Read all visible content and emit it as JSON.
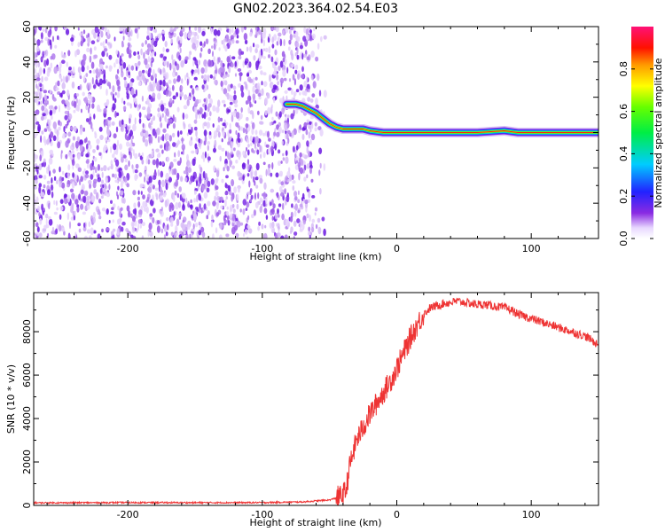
{
  "title": "GN02.2023.364.02.54.E03",
  "chart_data": [
    {
      "type": "heatmap",
      "xlabel": "Height of straight line (km)",
      "ylabel": "Frequency (Hz)",
      "xlim": [
        -270,
        150
      ],
      "ylim": [
        -60,
        60
      ],
      "x_ticks": [
        -200,
        -100,
        0,
        100
      ],
      "y_ticks": [
        -60,
        -40,
        -20,
        0,
        20,
        40,
        60
      ],
      "noise_region_x": [
        -270,
        -62
      ],
      "signal_trace": {
        "x": [
          -82,
          -75,
          -70,
          -65,
          -60,
          -55,
          -50,
          -45,
          -40,
          -35,
          -30,
          -25,
          -20,
          -10,
          0,
          20,
          40,
          60,
          80,
          90,
          100,
          120,
          150
        ],
        "y": [
          16,
          16,
          15,
          13,
          11,
          8,
          5,
          3,
          2,
          2,
          2,
          2,
          1,
          0,
          0,
          0,
          0,
          0,
          1,
          0,
          0,
          0,
          0
        ]
      },
      "colorbar": {
        "label": "Normalized spectral amplitude",
        "range": [
          0,
          1
        ],
        "ticks": [
          "0.0",
          "0.2",
          "0.4",
          "0.6",
          "0.8"
        ],
        "colormap": "rainbow (white-violet-blue-cyan-green-yellow-orange-red-magenta)"
      },
      "grid": false
    },
    {
      "type": "line",
      "xlabel": "Height of straight line (km)",
      "ylabel": "SNR (10 * v/v)",
      "xlim": [
        -270,
        150
      ],
      "ylim": [
        0,
        9800
      ],
      "x_ticks": [
        -200,
        -100,
        0,
        100
      ],
      "y_ticks": [
        0,
        2000,
        4000,
        6000,
        8000
      ],
      "color": "#ee3333",
      "series": [
        {
          "x": [
            -270,
            -250,
            -200,
            -150,
            -100,
            -70,
            -50,
            -42,
            -38,
            -35,
            -30,
            -25,
            -20,
            -15,
            -10,
            -5,
            0,
            5,
            10,
            15,
            20,
            25,
            30,
            35,
            40,
            45,
            50,
            55,
            60,
            65,
            70,
            75,
            80,
            85,
            90,
            95,
            100,
            105,
            110,
            115,
            120,
            125,
            130,
            135,
            140,
            145,
            150
          ],
          "values": [
            120,
            120,
            130,
            125,
            130,
            160,
            250,
            400,
            600,
            1800,
            3000,
            3600,
            4200,
            4700,
            5200,
            5700,
            6300,
            7000,
            7700,
            8300,
            8800,
            9100,
            9200,
            9300,
            9350,
            9400,
            9350,
            9300,
            9250,
            9250,
            9200,
            9150,
            9100,
            9000,
            8800,
            8700,
            8600,
            8500,
            8400,
            8300,
            8200,
            8100,
            8000,
            7900,
            7800,
            7600,
            7400
          ]
        }
      ],
      "grid": false
    }
  ]
}
